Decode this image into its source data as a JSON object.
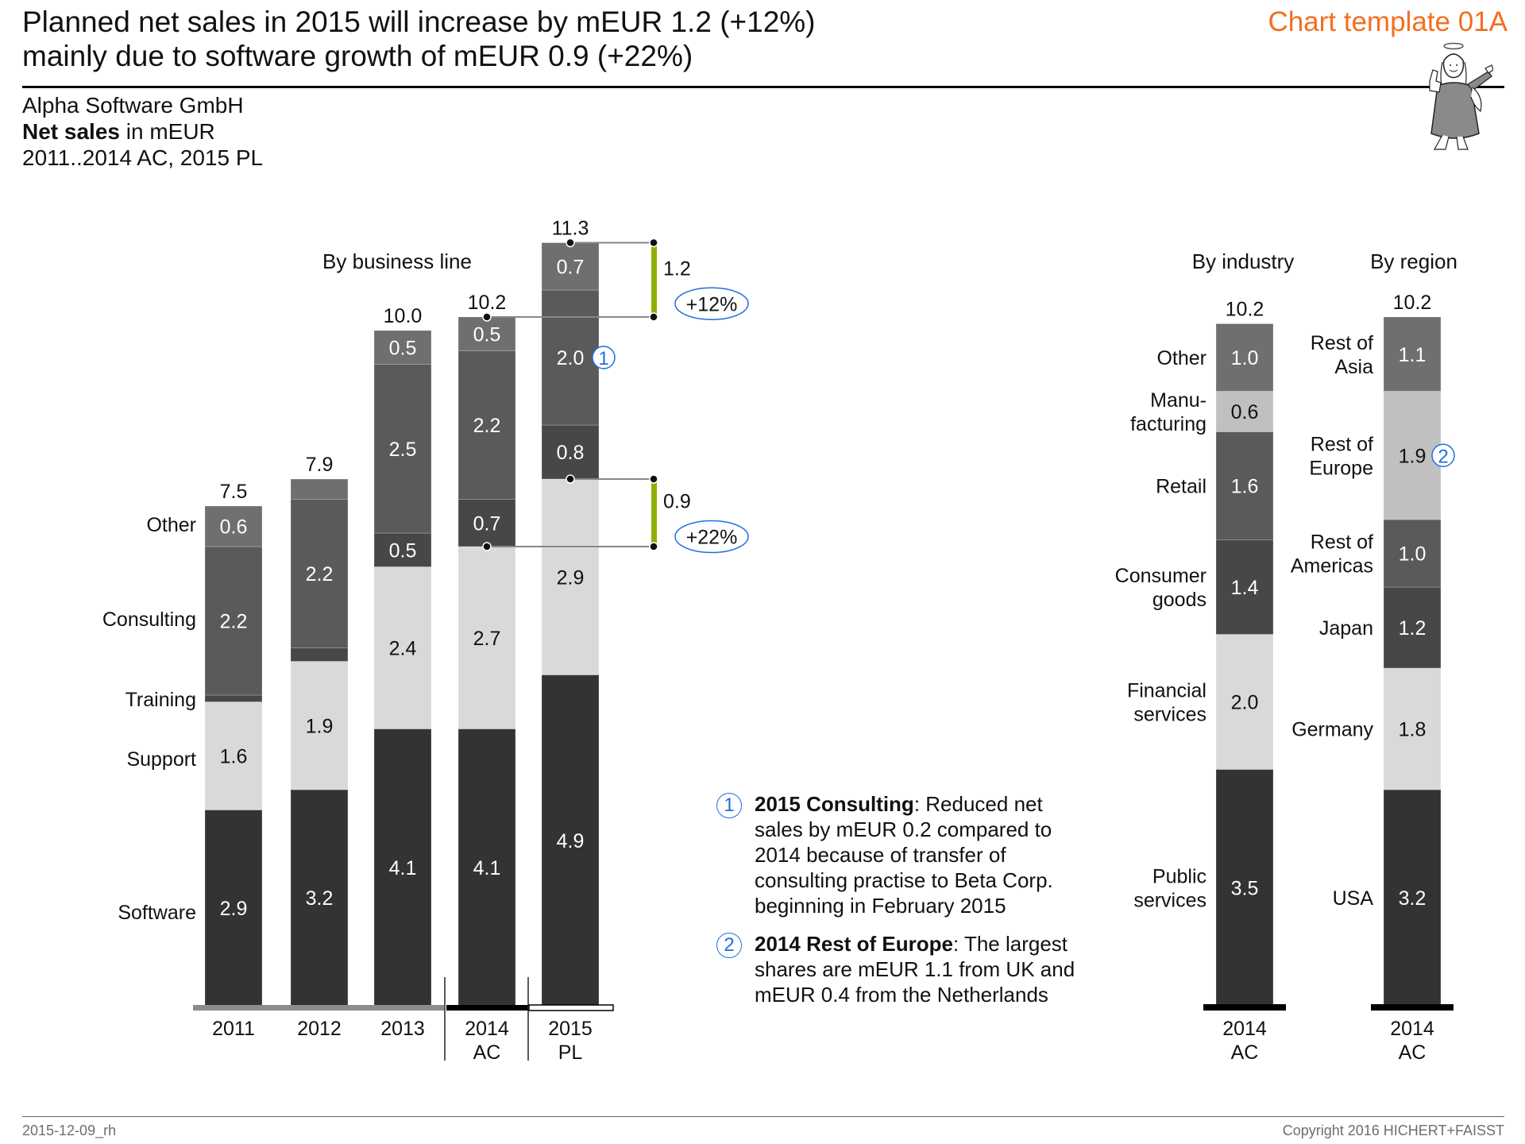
{
  "header": {
    "title_line1": "Planned net sales in 2015 will increase by mEUR 1.2 (+12%)",
    "title_line2": "mainly due to software growth of mEUR 0.9 (+22%)",
    "template_label": "Chart template 01A",
    "mascot_icon": "angel-icon"
  },
  "subtitle": {
    "company": "Alpha Software GmbH",
    "measure_bold": "Net sales",
    "measure_rest": " in mEUR",
    "period": "2011..2014 AC, 2015 PL"
  },
  "colors": {
    "software": "#333333",
    "support": "#d9d9d9",
    "training": "#474747",
    "consulting": "#5a5a5a",
    "other": "#6f6f6f",
    "light_alt": "#c0c0c0",
    "delta_green": "#8db000",
    "marker_blue": "#1f6fe0",
    "accent_orange": "#f36f21"
  },
  "chart_data": [
    {
      "type": "bar",
      "stacked": true,
      "title": "By business line",
      "categories": [
        "2011",
        "2012",
        "2013",
        "2014 AC",
        "2015 PL"
      ],
      "category_lines": [
        [
          "2011"
        ],
        [
          "2012"
        ],
        [
          "2013"
        ],
        [
          "2014",
          "AC"
        ],
        [
          "2015",
          "PL"
        ]
      ],
      "scenario": [
        "PY",
        "PY",
        "PY",
        "AC",
        "PL"
      ],
      "totals": [
        "7.5",
        "7.9",
        "10.0",
        "10.2",
        "11.3"
      ],
      "series": [
        {
          "name": "Software",
          "color_key": "software",
          "values": [
            2.9,
            3.2,
            4.1,
            4.1,
            4.9
          ],
          "labels": [
            "2.9",
            "3.2",
            "4.1",
            "4.1",
            "4.9"
          ],
          "text": "light"
        },
        {
          "name": "Support",
          "color_key": "support",
          "values": [
            1.6,
            1.9,
            2.4,
            2.7,
            2.9
          ],
          "labels": [
            "1.6",
            "1.9",
            "2.4",
            "2.7",
            "2.9"
          ],
          "text": "dark"
        },
        {
          "name": "Training",
          "color_key": "training",
          "values": [
            0.1,
            0.2,
            0.5,
            0.7,
            0.8
          ],
          "labels": [
            "",
            "",
            "0.5",
            "0.7",
            "0.8"
          ],
          "text": "light"
        },
        {
          "name": "Consulting",
          "color_key": "consulting",
          "values": [
            2.2,
            2.2,
            2.5,
            2.2,
            2.0
          ],
          "labels": [
            "2.2",
            "2.2",
            "2.5",
            "2.2",
            "2.0"
          ],
          "text": "light"
        },
        {
          "name": "Other",
          "color_key": "other",
          "values": [
            0.6,
            0.3,
            0.5,
            0.5,
            0.7
          ],
          "labels": [
            "0.6",
            "",
            "0.5",
            "0.5",
            "0.7"
          ],
          "text": "light"
        }
      ],
      "annotations": [
        {
          "type": "delta",
          "from_category": "2014 AC",
          "to_category": "2015 PL",
          "measure": "total",
          "value": "1.2",
          "percent": "+12%"
        },
        {
          "type": "delta",
          "from_category": "2014 AC",
          "to_category": "2015 PL",
          "measure": "Software",
          "value": "0.9",
          "percent": "+22%"
        },
        {
          "type": "footnote-marker",
          "category": "2015 PL",
          "series": "Consulting",
          "marker": "1"
        }
      ]
    },
    {
      "type": "bar",
      "stacked": true,
      "title": "By industry",
      "categories": [
        "2014 AC"
      ],
      "category_lines": [
        [
          "2014",
          "AC"
        ]
      ],
      "totals": [
        "10.2"
      ],
      "series": [
        {
          "name": "Public services",
          "name_lines": [
            "Public",
            "services"
          ],
          "color_key": "software",
          "values": [
            3.5
          ],
          "labels": [
            "3.5"
          ],
          "text": "light"
        },
        {
          "name": "Financial services",
          "name_lines": [
            "Financial",
            "services"
          ],
          "color_key": "support",
          "values": [
            2.0
          ],
          "labels": [
            "2.0"
          ],
          "text": "dark"
        },
        {
          "name": "Consumer goods",
          "name_lines": [
            "Consumer",
            "goods"
          ],
          "color_key": "training",
          "values": [
            1.4
          ],
          "labels": [
            "1.4"
          ],
          "text": "light"
        },
        {
          "name": "Retail",
          "name_lines": [
            "Retail"
          ],
          "color_key": "consulting",
          "values": [
            1.6
          ],
          "labels": [
            "1.6"
          ],
          "text": "light"
        },
        {
          "name": "Manufacturing",
          "name_lines": [
            "Manu-",
            "facturing"
          ],
          "color_key": "light_alt",
          "values": [
            0.6
          ],
          "labels": [
            "0.6"
          ],
          "text": "dark"
        },
        {
          "name": "Other",
          "name_lines": [
            "Other"
          ],
          "color_key": "other",
          "values": [
            1.0
          ],
          "labels": [
            "1.0"
          ],
          "text": "light"
        }
      ]
    },
    {
      "type": "bar",
      "stacked": true,
      "title": "By region",
      "categories": [
        "2014 AC"
      ],
      "category_lines": [
        [
          "2014",
          "AC"
        ]
      ],
      "totals": [
        "10.2"
      ],
      "series": [
        {
          "name": "USA",
          "name_lines": [
            "USA"
          ],
          "color_key": "software",
          "values": [
            3.2
          ],
          "labels": [
            "3.2"
          ],
          "text": "light"
        },
        {
          "name": "Germany",
          "name_lines": [
            "Germany"
          ],
          "color_key": "support",
          "values": [
            1.8
          ],
          "labels": [
            "1.8"
          ],
          "text": "dark"
        },
        {
          "name": "Japan",
          "name_lines": [
            "Japan"
          ],
          "color_key": "training",
          "values": [
            1.2
          ],
          "labels": [
            "1.2"
          ],
          "text": "light"
        },
        {
          "name": "Rest of Americas",
          "name_lines": [
            "Rest of",
            "Americas"
          ],
          "color_key": "consulting",
          "values": [
            1.0
          ],
          "labels": [
            "1.0"
          ],
          "text": "light"
        },
        {
          "name": "Rest of Europe",
          "name_lines": [
            "Rest of",
            "Europe"
          ],
          "color_key": "light_alt",
          "values": [
            1.9
          ],
          "labels": [
            "1.9"
          ],
          "text": "dark",
          "marker": "2"
        },
        {
          "name": "Rest of Asia",
          "name_lines": [
            "Rest of",
            "Asia"
          ],
          "color_key": "other",
          "values": [
            1.1
          ],
          "labels": [
            "1.1"
          ],
          "text": "light"
        }
      ]
    }
  ],
  "notes": [
    {
      "marker": "1",
      "bold": "2015 Consulting",
      "text": ": Reduced net sales by mEUR 0.2 compared to 2014 because of transfer of consulting practise to Beta Corp. beginning in February 2015"
    },
    {
      "marker": "2",
      "bold": "2014 Rest of Europe",
      "text": ": The largest shares are mEUR 1.1 from UK and mEUR 0.4 from the Netherlands"
    }
  ],
  "footer": {
    "left": "2015-12-09_rh",
    "right": "Copyright  2016 HICHERT+FAISST"
  }
}
